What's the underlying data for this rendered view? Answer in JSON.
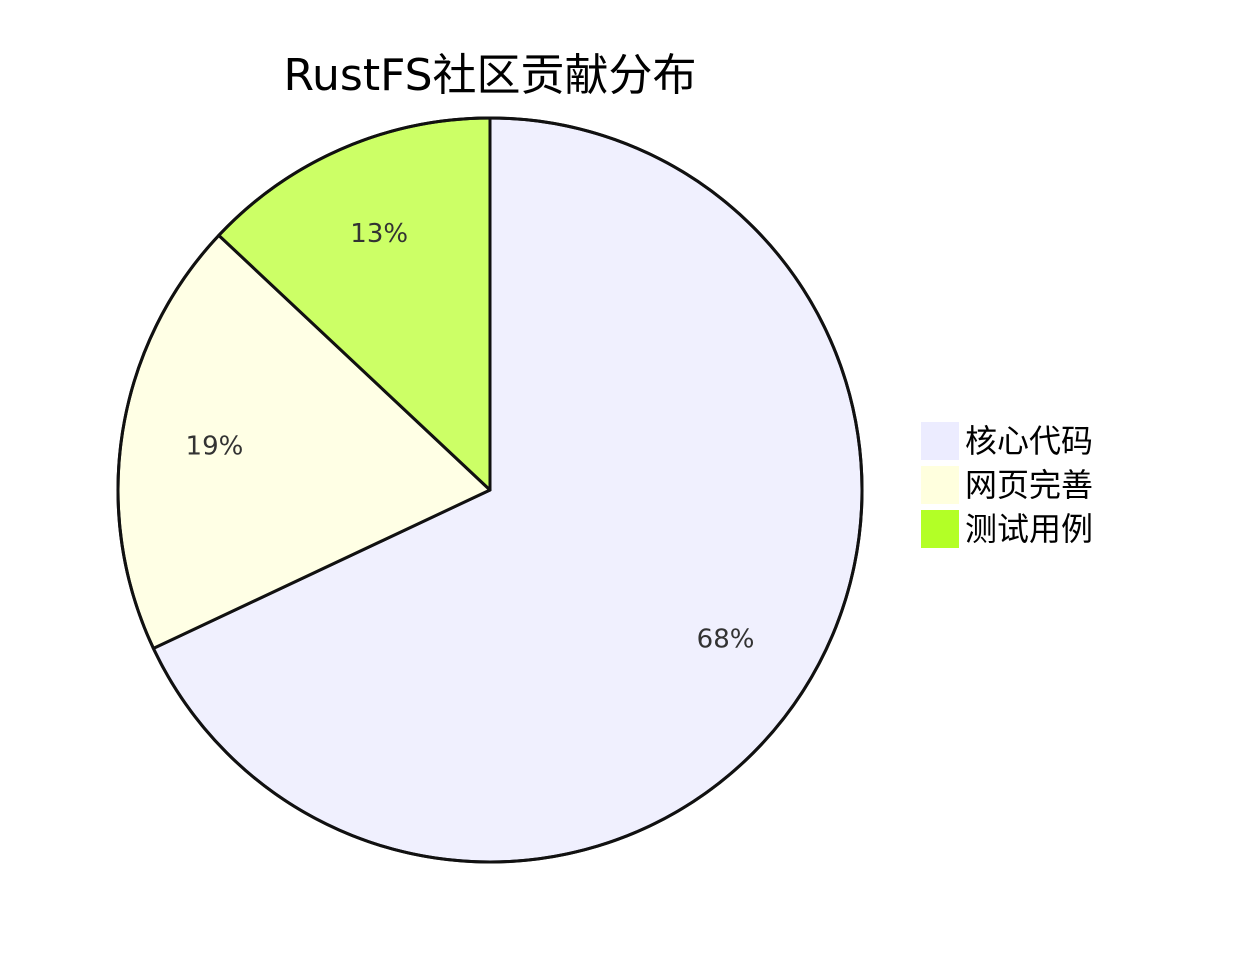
{
  "chart_data": {
    "type": "pie",
    "title": "RustFS社区贡献分布",
    "slices": [
      {
        "label": "核心代码",
        "value": 68,
        "display": "68%",
        "color": "#f0f0fe",
        "legend_color": "#ececff"
      },
      {
        "label": "网页完善",
        "value": 19,
        "display": "19%",
        "color": "#ffffe5",
        "legend_color": "#ffffde"
      },
      {
        "label": "测试用例",
        "value": 13,
        "display": "13%",
        "color": "#ccff66",
        "legend_color": "#b3ff26"
      }
    ],
    "start": "12 o'clock",
    "direction": "clockwise",
    "legend_position": "right"
  }
}
